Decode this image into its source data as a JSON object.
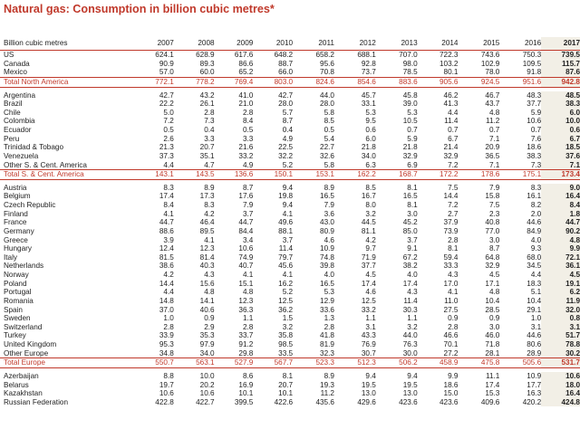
{
  "title": "Natural gas: Consumption in billion cubic metres*",
  "unit_label": "Billion cubic metres",
  "years": [
    "2007",
    "2008",
    "2009",
    "2010",
    "2011",
    "2012",
    "2013",
    "2014",
    "2015",
    "2016",
    "2017"
  ],
  "rows": [
    {
      "name": "US",
      "values": [
        "624.1",
        "628.9",
        "617.6",
        "648.2",
        "658.2",
        "688.1",
        "707.0",
        "722.3",
        "743.6",
        "750.3",
        "739.5"
      ]
    },
    {
      "name": "Canada",
      "values": [
        "90.9",
        "89.3",
        "86.6",
        "88.7",
        "95.6",
        "92.8",
        "98.0",
        "103.2",
        "102.9",
        "109.5",
        "115.7"
      ]
    },
    {
      "name": "Mexico",
      "values": [
        "57.0",
        "60.0",
        "65.2",
        "66.0",
        "70.8",
        "73.7",
        "78.5",
        "80.1",
        "78.0",
        "91.8",
        "87.6"
      ]
    },
    {
      "name": "Total North America",
      "values": [
        "772.1",
        "778.2",
        "769.4",
        "803.0",
        "824.6",
        "854.6",
        "883.6",
        "905.6",
        "924.5",
        "951.6",
        "942.8"
      ],
      "total": true
    },
    {
      "gap": true
    },
    {
      "name": "Argentina",
      "values": [
        "42.7",
        "43.2",
        "41.0",
        "42.7",
        "44.0",
        "45.7",
        "45.8",
        "46.2",
        "46.7",
        "48.3",
        "48.5"
      ]
    },
    {
      "name": "Brazil",
      "values": [
        "22.2",
        "26.1",
        "21.0",
        "28.0",
        "28.0",
        "33.1",
        "39.0",
        "41.3",
        "43.7",
        "37.7",
        "38.3"
      ]
    },
    {
      "name": "Chile",
      "values": [
        "5.0",
        "2.8",
        "2.8",
        "5.7",
        "5.8",
        "5.3",
        "5.3",
        "4.4",
        "4.8",
        "5.9",
        "6.0"
      ]
    },
    {
      "name": "Colombia",
      "values": [
        "7.2",
        "7.3",
        "8.4",
        "8.7",
        "8.5",
        "9.5",
        "10.5",
        "11.4",
        "11.2",
        "10.6",
        "10.0"
      ]
    },
    {
      "name": "Ecuador",
      "values": [
        "0.5",
        "0.4",
        "0.5",
        "0.4",
        "0.5",
        "0.6",
        "0.7",
        "0.7",
        "0.7",
        "0.7",
        "0.6"
      ]
    },
    {
      "name": "Peru",
      "values": [
        "2.6",
        "3.3",
        "3.3",
        "4.9",
        "5.4",
        "6.0",
        "5.9",
        "6.7",
        "7.1",
        "7.6",
        "6.7"
      ]
    },
    {
      "name": "Trinidad & Tobago",
      "values": [
        "21.3",
        "20.7",
        "21.6",
        "22.5",
        "22.7",
        "21.8",
        "21.8",
        "21.4",
        "20.9",
        "18.6",
        "18.5"
      ]
    },
    {
      "name": "Venezuela",
      "values": [
        "37.3",
        "35.1",
        "33.2",
        "32.2",
        "32.6",
        "34.0",
        "32.9",
        "32.9",
        "36.5",
        "38.3",
        "37.6"
      ]
    },
    {
      "name": "Other S. & Cent. America",
      "values": [
        "4.4",
        "4.7",
        "4.9",
        "5.2",
        "5.8",
        "6.3",
        "6.9",
        "7.2",
        "7.1",
        "7.3",
        "7.1"
      ]
    },
    {
      "name": "Total S. & Cent. America",
      "values": [
        "143.1",
        "143.5",
        "136.6",
        "150.1",
        "153.1",
        "162.2",
        "168.7",
        "172.2",
        "178.6",
        "175.1",
        "173.4"
      ],
      "total": true
    },
    {
      "gap": true
    },
    {
      "name": "Austria",
      "values": [
        "8.3",
        "8.9",
        "8.7",
        "9.4",
        "8.9",
        "8.5",
        "8.1",
        "7.5",
        "7.9",
        "8.3",
        "9.0"
      ]
    },
    {
      "name": "Belgium",
      "values": [
        "17.4",
        "17.3",
        "17.6",
        "19.8",
        "16.5",
        "16.7",
        "16.5",
        "14.4",
        "15.8",
        "16.1",
        "16.4"
      ]
    },
    {
      "name": "Czech Republic",
      "values": [
        "8.4",
        "8.3",
        "7.9",
        "9.4",
        "7.9",
        "8.0",
        "8.1",
        "7.2",
        "7.5",
        "8.2",
        "8.4"
      ]
    },
    {
      "name": "Finland",
      "values": [
        "4.1",
        "4.2",
        "3.7",
        "4.1",
        "3.6",
        "3.2",
        "3.0",
        "2.7",
        "2.3",
        "2.0",
        "1.8"
      ]
    },
    {
      "name": "France",
      "values": [
        "44.7",
        "46.4",
        "44.7",
        "49.6",
        "43.0",
        "44.5",
        "45.2",
        "37.9",
        "40.8",
        "44.6",
        "44.7"
      ]
    },
    {
      "name": "Germany",
      "values": [
        "88.6",
        "89.5",
        "84.4",
        "88.1",
        "80.9",
        "81.1",
        "85.0",
        "73.9",
        "77.0",
        "84.9",
        "90.2"
      ]
    },
    {
      "name": "Greece",
      "values": [
        "3.9",
        "4.1",
        "3.4",
        "3.7",
        "4.6",
        "4.2",
        "3.7",
        "2.8",
        "3.0",
        "4.0",
        "4.8"
      ]
    },
    {
      "name": "Hungary",
      "values": [
        "12.4",
        "12.3",
        "10.6",
        "11.4",
        "10.9",
        "9.7",
        "9.1",
        "8.1",
        "8.7",
        "9.3",
        "9.9"
      ]
    },
    {
      "name": "Italy",
      "values": [
        "81.5",
        "81.4",
        "74.9",
        "79.7",
        "74.8",
        "71.9",
        "67.2",
        "59.4",
        "64.8",
        "68.0",
        "72.1"
      ]
    },
    {
      "name": "Netherlands",
      "values": [
        "38.6",
        "40.3",
        "40.7",
        "45.6",
        "39.8",
        "37.7",
        "38.2",
        "33.3",
        "32.9",
        "34.5",
        "36.1"
      ]
    },
    {
      "name": "Norway",
      "values": [
        "4.2",
        "4.3",
        "4.1",
        "4.1",
        "4.0",
        "4.5",
        "4.0",
        "4.3",
        "4.5",
        "4.4",
        "4.5"
      ]
    },
    {
      "name": "Poland",
      "values": [
        "14.4",
        "15.6",
        "15.1",
        "16.2",
        "16.5",
        "17.4",
        "17.4",
        "17.0",
        "17.1",
        "18.3",
        "19.1"
      ]
    },
    {
      "name": "Portugal",
      "values": [
        "4.4",
        "4.8",
        "4.8",
        "5.2",
        "5.3",
        "4.6",
        "4.3",
        "4.1",
        "4.8",
        "5.1",
        "6.2"
      ]
    },
    {
      "name": "Romania",
      "values": [
        "14.8",
        "14.1",
        "12.3",
        "12.5",
        "12.9",
        "12.5",
        "11.4",
        "11.0",
        "10.4",
        "10.4",
        "11.9"
      ]
    },
    {
      "name": "Spain",
      "values": [
        "37.0",
        "40.6",
        "36.3",
        "36.2",
        "33.6",
        "33.2",
        "30.3",
        "27.5",
        "28.5",
        "29.1",
        "32.0"
      ]
    },
    {
      "name": "Sweden",
      "values": [
        "1.0",
        "0.9",
        "1.1",
        "1.5",
        "1.3",
        "1.1",
        "1.1",
        "0.9",
        "0.9",
        "1.0",
        "0.8"
      ]
    },
    {
      "name": "Switzerland",
      "values": [
        "2.8",
        "2.9",
        "2.8",
        "3.2",
        "2.8",
        "3.1",
        "3.2",
        "2.8",
        "3.0",
        "3.1",
        "3.1"
      ]
    },
    {
      "name": "Turkey",
      "values": [
        "33.9",
        "35.3",
        "33.7",
        "35.8",
        "41.8",
        "43.3",
        "44.0",
        "46.6",
        "46.0",
        "44.6",
        "51.7"
      ]
    },
    {
      "name": "United Kingdom",
      "values": [
        "95.3",
        "97.9",
        "91.2",
        "98.5",
        "81.9",
        "76.9",
        "76.3",
        "70.1",
        "71.8",
        "80.6",
        "78.8"
      ]
    },
    {
      "name": "Other Europe",
      "values": [
        "34.8",
        "34.0",
        "29.8",
        "33.5",
        "32.3",
        "30.7",
        "30.0",
        "27.2",
        "28.1",
        "28.9",
        "30.2"
      ]
    },
    {
      "name": "Total Europe",
      "values": [
        "550.7",
        "563.1",
        "527.9",
        "567.7",
        "523.3",
        "512.3",
        "506.2",
        "458.9",
        "475.8",
        "505.6",
        "531.7"
      ],
      "total": true
    },
    {
      "gap": true
    },
    {
      "name": "Azerbaijan",
      "values": [
        "8.8",
        "10.0",
        "8.6",
        "8.1",
        "8.9",
        "9.4",
        "9.4",
        "9.9",
        "11.1",
        "10.9",
        "10.6"
      ]
    },
    {
      "name": "Belarus",
      "values": [
        "19.7",
        "20.2",
        "16.9",
        "20.7",
        "19.3",
        "19.5",
        "19.5",
        "18.6",
        "17.4",
        "17.7",
        "18.0"
      ]
    },
    {
      "name": "Kazakhstan",
      "values": [
        "10.6",
        "10.6",
        "10.1",
        "10.1",
        "11.2",
        "13.0",
        "13.0",
        "15.0",
        "15.3",
        "16.3",
        "16.4"
      ]
    },
    {
      "name": "Russian Federation",
      "values": [
        "422.8",
        "422.7",
        "399.5",
        "422.6",
        "435.6",
        "429.6",
        "423.6",
        "423.6",
        "409.6",
        "420.2",
        "424.8"
      ]
    }
  ]
}
